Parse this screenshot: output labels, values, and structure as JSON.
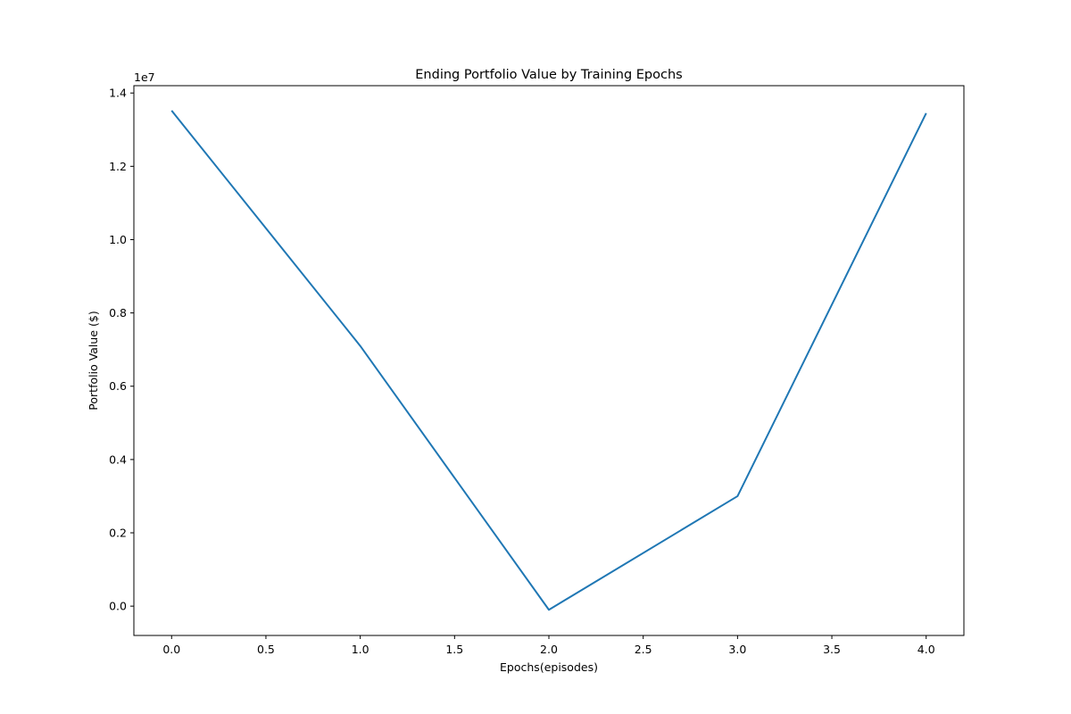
{
  "chart_data": {
    "type": "line",
    "title": "Ending Portfolio Value by Training Epochs",
    "xlabel": "Epochs(episodes)",
    "ylabel": "Portfolio Value ($)",
    "y_offset_label": "1e7",
    "xlim": [
      -0.2,
      4.2
    ],
    "ylim": [
      -800000,
      14200000
    ],
    "x_ticks": [
      0.0,
      0.5,
      1.0,
      1.5,
      2.0,
      2.5,
      3.0,
      3.5,
      4.0
    ],
    "x_tick_labels": [
      "0.0",
      "0.5",
      "1.0",
      "1.5",
      "2.0",
      "2.5",
      "3.0",
      "3.5",
      "4.0"
    ],
    "y_ticks": [
      0,
      2000000,
      4000000,
      6000000,
      8000000,
      10000000,
      12000000,
      14000000
    ],
    "y_tick_labels": [
      "0.0",
      "0.2",
      "0.4",
      "0.6",
      "0.8",
      "1.0",
      "1.2",
      "1.4"
    ],
    "grid": false,
    "series": [
      {
        "x": [
          0,
          1,
          2,
          3,
          4
        ],
        "values": [
          13520000,
          7100000,
          -100000,
          3000000,
          13450000
        ],
        "color": "#1f77b4"
      }
    ]
  }
}
